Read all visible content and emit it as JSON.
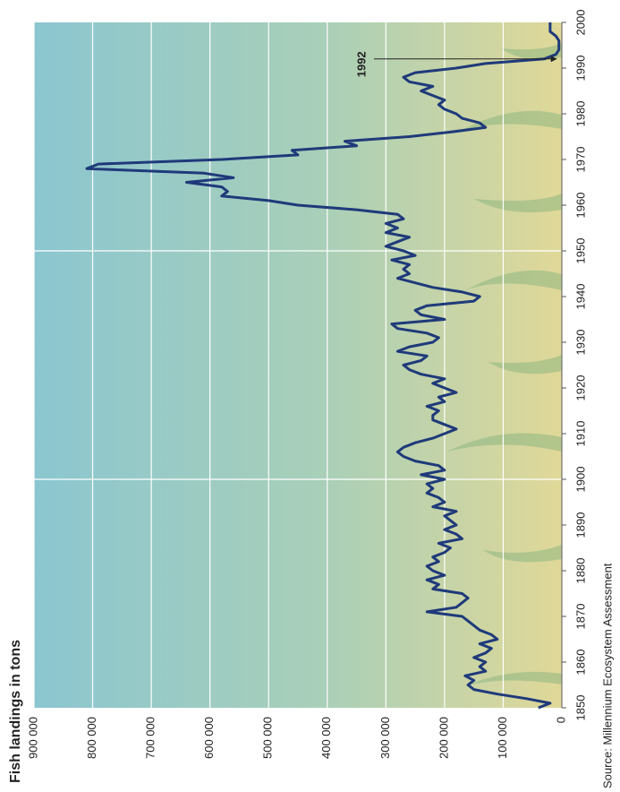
{
  "chart_data": {
    "type": "line",
    "title": "Fish landings in tons",
    "source": "Source: Millennium Ecosystem Assessment",
    "x": [
      1850,
      1851,
      1852,
      1853,
      1854,
      1855,
      1856,
      1857,
      1858,
      1859,
      1860,
      1861,
      1862,
      1863,
      1864,
      1865,
      1866,
      1867,
      1868,
      1869,
      1870,
      1871,
      1872,
      1873,
      1874,
      1875,
      1876,
      1877,
      1878,
      1879,
      1880,
      1881,
      1882,
      1883,
      1884,
      1885,
      1886,
      1887,
      1888,
      1889,
      1890,
      1891,
      1892,
      1893,
      1894,
      1895,
      1896,
      1897,
      1898,
      1899,
      1900,
      1901,
      1902,
      1903,
      1904,
      1905,
      1906,
      1907,
      1908,
      1909,
      1910,
      1911,
      1912,
      1913,
      1914,
      1915,
      1916,
      1917,
      1918,
      1919,
      1920,
      1921,
      1922,
      1923,
      1924,
      1925,
      1926,
      1927,
      1928,
      1929,
      1930,
      1931,
      1932,
      1933,
      1934,
      1935,
      1936,
      1937,
      1938,
      1939,
      1940,
      1941,
      1942,
      1943,
      1944,
      1945,
      1946,
      1947,
      1948,
      1949,
      1950,
      1951,
      1952,
      1953,
      1954,
      1955,
      1956,
      1957,
      1958,
      1959,
      1960,
      1961,
      1962,
      1963,
      1964,
      1965,
      1966,
      1967,
      1968,
      1969,
      1970,
      1971,
      1972,
      1973,
      1974,
      1975,
      1976,
      1977,
      1978,
      1979,
      1980,
      1981,
      1982,
      1983,
      1984,
      1985,
      1986,
      1987,
      1988,
      1989,
      1990,
      1991,
      1992,
      1993,
      1994,
      1995,
      1996,
      1997,
      1998,
      1999,
      2000
    ],
    "series": [
      {
        "name": "Fish landings",
        "color": "#1f3a7a",
        "values": [
          40000,
          20000,
          60000,
          110000,
          150000,
          160000,
          150000,
          165000,
          130000,
          140000,
          130000,
          150000,
          130000,
          120000,
          140000,
          110000,
          120000,
          140000,
          150000,
          160000,
          170000,
          230000,
          180000,
          170000,
          160000,
          170000,
          220000,
          210000,
          230000,
          200000,
          220000,
          230000,
          210000,
          220000,
          200000,
          190000,
          210000,
          170000,
          180000,
          200000,
          180000,
          190000,
          200000,
          180000,
          220000,
          200000,
          210000,
          230000,
          220000,
          230000,
          200000,
          240000,
          200000,
          210000,
          250000,
          270000,
          280000,
          270000,
          250000,
          220000,
          200000,
          180000,
          200000,
          220000,
          220000,
          210000,
          230000,
          200000,
          210000,
          180000,
          200000,
          220000,
          200000,
          240000,
          260000,
          270000,
          240000,
          230000,
          280000,
          260000,
          220000,
          210000,
          230000,
          280000,
          290000,
          200000,
          240000,
          250000,
          230000,
          150000,
          140000,
          170000,
          220000,
          250000,
          280000,
          260000,
          270000,
          260000,
          290000,
          250000,
          270000,
          300000,
          280000,
          260000,
          300000,
          280000,
          300000,
          270000,
          280000,
          350000,
          450000,
          500000,
          580000,
          570000,
          580000,
          640000,
          560000,
          610000,
          810000,
          790000,
          580000,
          450000,
          460000,
          350000,
          370000,
          260000,
          190000,
          130000,
          140000,
          170000,
          180000,
          200000,
          210000,
          200000,
          220000,
          240000,
          220000,
          260000,
          270000,
          250000,
          180000,
          130000,
          30000,
          10000,
          5000,
          5000,
          5000,
          10000,
          20000,
          20000,
          20000
        ]
      }
    ],
    "xlim": [
      1850,
      2000
    ],
    "xticks": [
      1850,
      1860,
      1870,
      1880,
      1890,
      1900,
      1910,
      1920,
      1930,
      1940,
      1950,
      1960,
      1970,
      1980,
      1990,
      2000
    ],
    "ylim": [
      0,
      900000
    ],
    "yticks": [
      0,
      {
        "value": 100000,
        "label": "100 000"
      },
      {
        "value": 200000,
        "label": "200 000"
      },
      {
        "value": 300000,
        "label": "300 000"
      },
      {
        "value": 400000,
        "label": "400 000"
      },
      {
        "value": 500000,
        "label": "500 000"
      },
      {
        "value": 600000,
        "label": "600 000"
      },
      {
        "value": 700000,
        "label": "700 000"
      },
      {
        "value": 800000,
        "label": "800 000"
      },
      {
        "value": 900000,
        "label": "900 000"
      }
    ],
    "grid": true,
    "annotations": [
      {
        "text": "1992",
        "x": 1992
      }
    ]
  }
}
